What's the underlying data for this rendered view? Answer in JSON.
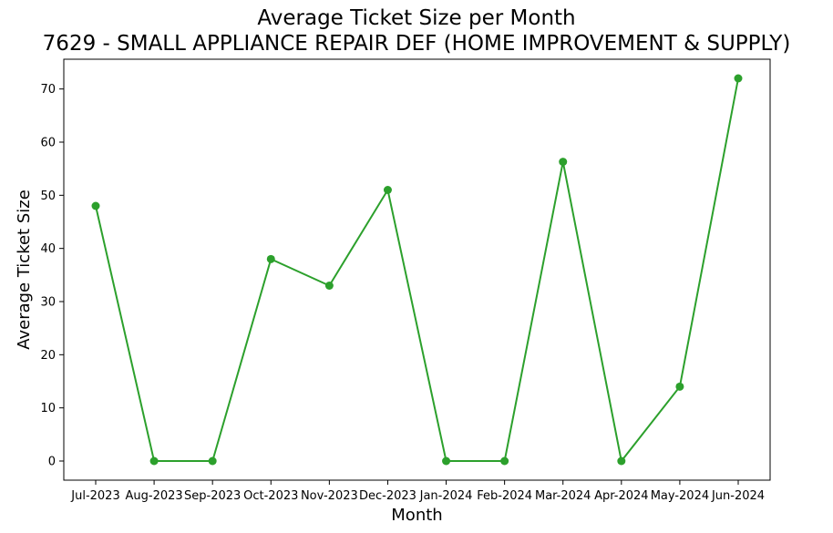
{
  "chart_data": {
    "type": "line",
    "title": "Average Ticket Size per Month",
    "subtitle": "7629 - SMALL APPLIANCE REPAIR DEF (HOME IMPROVEMENT & SUPPLY)",
    "xlabel": "Month",
    "ylabel": "Average Ticket Size",
    "categories": [
      "Jul-2023",
      "Aug-2023",
      "Sep-2023",
      "Oct-2023",
      "Nov-2023",
      "Dec-2023",
      "Jan-2024",
      "Feb-2024",
      "Mar-2024",
      "Apr-2024",
      "May-2024",
      "Jun-2024"
    ],
    "values": [
      48,
      0,
      0,
      38,
      33,
      51,
      0,
      0,
      56.3,
      0,
      14,
      72
    ],
    "ylim": [
      -3.6,
      75.6
    ],
    "yticks": [
      0,
      10,
      20,
      30,
      40,
      50,
      60,
      70
    ],
    "grid": false,
    "color": "#2ca02c",
    "marker": "circle"
  }
}
